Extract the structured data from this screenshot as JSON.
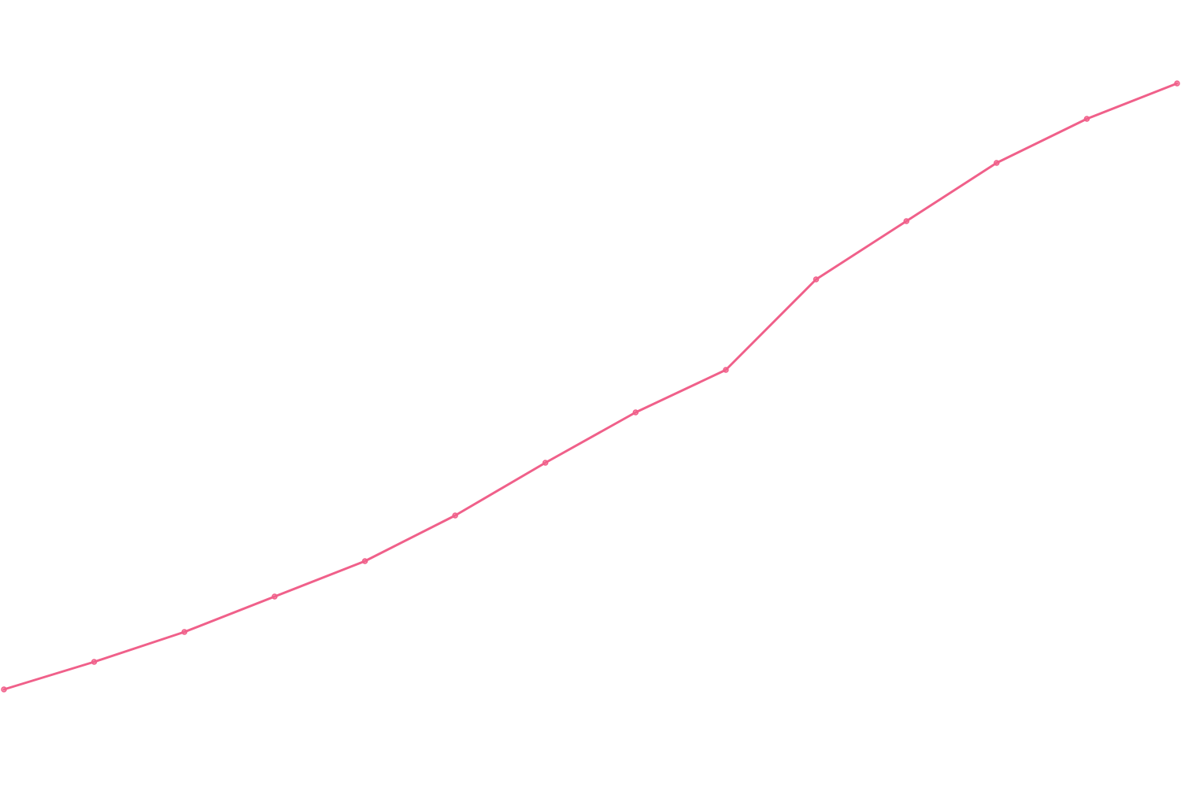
{
  "chart_data": {
    "type": "line",
    "title": "",
    "xlabel": "",
    "ylabel": "",
    "grid": false,
    "legend": "none",
    "x": [
      1,
      2,
      3,
      4,
      5,
      6,
      7,
      8,
      9,
      10,
      11,
      12,
      13,
      14
    ],
    "xlim": [
      1,
      14
    ],
    "ylim": [
      0,
      100
    ],
    "series": [
      {
        "color": "#f0608a",
        "values": [
          12.4,
          15.9,
          19.7,
          24.2,
          28.7,
          34.5,
          41.2,
          47.6,
          53.0,
          64.5,
          71.9,
          79.3,
          84.9,
          89.4
        ]
      }
    ]
  }
}
